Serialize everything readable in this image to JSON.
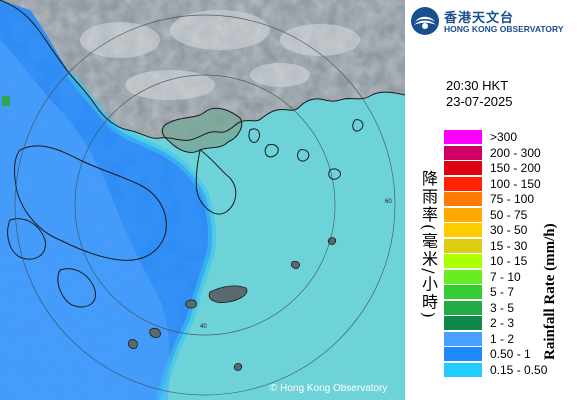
{
  "header": {
    "org_name_zh": "香港天文台",
    "org_name_en": "HONG KONG OBSERVATORY",
    "logo_icon": "hko-logo-icon"
  },
  "timestamp": {
    "time": "20:30 HKT",
    "date": "23-07-2025"
  },
  "map": {
    "range_ring_labels": [
      "40",
      "60"
    ],
    "copyright": "© Hong Kong Observatory"
  },
  "legend": {
    "title_zh": "降雨率(毫米/小時)",
    "title_en": "Rainfall Rate (mm/h)",
    "items": [
      {
        "label": ">300",
        "color": "#ff00ff"
      },
      {
        "label": "200 - 300",
        "color": "#cc0066"
      },
      {
        "label": "150 - 200",
        "color": "#dd0011"
      },
      {
        "label": "100 - 150",
        "color": "#ff2200"
      },
      {
        "label": "75 - 100",
        "color": "#ff7a00"
      },
      {
        "label": "50 - 75",
        "color": "#ffaa00"
      },
      {
        "label": "30 - 50",
        "color": "#ffcc00"
      },
      {
        "label": "15 - 30",
        "color": "#ddcc11"
      },
      {
        "label": "10 - 15",
        "color": "#aaff00"
      },
      {
        "label": "7 - 10",
        "color": "#66ee22"
      },
      {
        "label": "5 - 7",
        "color": "#33cc33"
      },
      {
        "label": "3 - 5",
        "color": "#22aa44"
      },
      {
        "label": "2 - 3",
        "color": "#11884a"
      },
      {
        "label": "1 - 2",
        "color": "#4aa0ff"
      },
      {
        "label": "0.50 - 1",
        "color": "#1e88ff"
      },
      {
        "label": "0.15 - 0.50",
        "color": "#22ccff"
      }
    ]
  }
}
